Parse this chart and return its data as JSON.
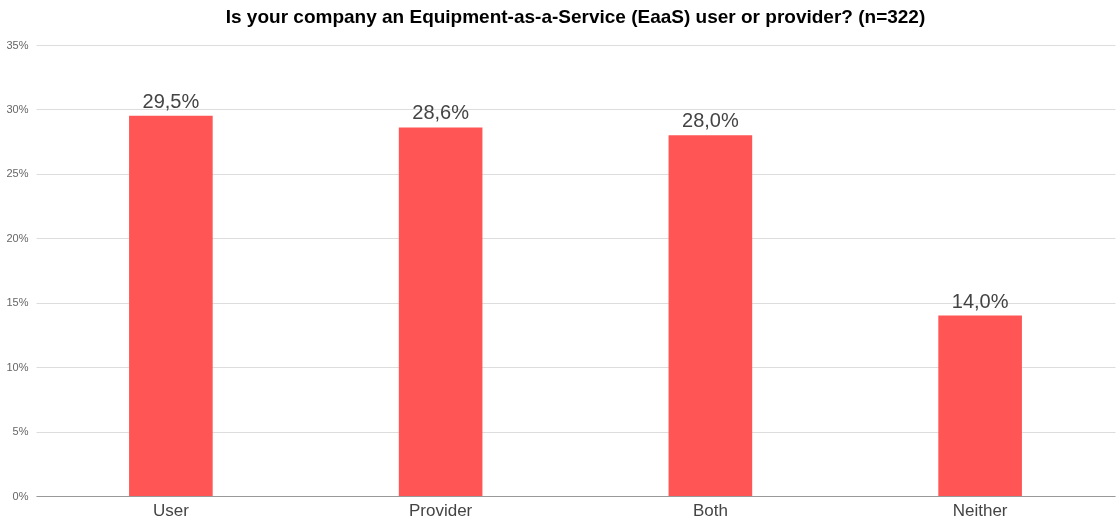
{
  "chart_data": {
    "type": "bar",
    "title": "Is your company an Equipment-as-a-Service (EaaS) user or provider? (n=322)",
    "categories": [
      "User",
      "Provider",
      "Both",
      "Neither"
    ],
    "values": [
      29.5,
      28.6,
      28.0,
      14.0
    ],
    "value_labels": [
      "29,5%",
      "28,6%",
      "28,0%",
      "14,0%"
    ],
    "color": "#ff5555",
    "ylim": [
      0,
      35
    ],
    "yticks": [
      {
        "value": 0,
        "label": "0%"
      },
      {
        "value": 5,
        "label": "5%"
      },
      {
        "value": 10,
        "label": "10%"
      },
      {
        "value": 15,
        "label": "15%"
      },
      {
        "value": 20,
        "label": "20%"
      },
      {
        "value": 25,
        "label": "25%"
      },
      {
        "value": 30,
        "label": "30%"
      },
      {
        "value": 35,
        "label": "35%"
      }
    ],
    "grid": "y"
  }
}
